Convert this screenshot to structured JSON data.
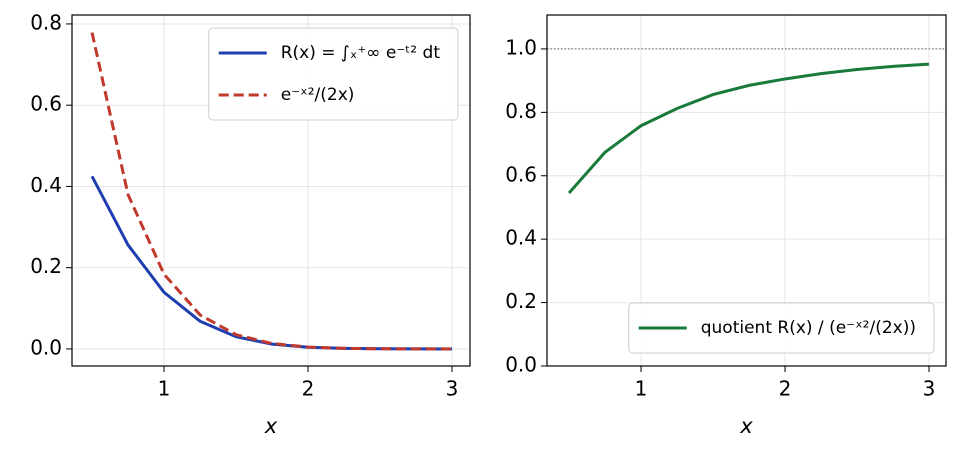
{
  "chart_data": [
    {
      "type": "line",
      "xlabel": "x",
      "x": [
        0.5,
        0.75,
        1,
        1.25,
        1.5,
        1.75,
        2,
        2.25,
        2.5,
        2.75,
        3
      ],
      "series": [
        {
          "name": "R(x) = ∫ₓ⁺∞ e⁻ᵗ² dt",
          "color": "#1f3fb0",
          "linestyle": "solid",
          "values": [
            0.425,
            0.256,
            0.1394,
            0.0683,
            0.0301,
            0.0118,
            0.0041,
            0.0013,
            0.0004,
            0.0001,
            0.0
          ]
        },
        {
          "name": "e⁻ˣ²/(2x)",
          "color": "#c0392b",
          "linestyle": "dashed",
          "values": [
            0.7788,
            0.3799,
            0.1839,
            0.0838,
            0.0351,
            0.0134,
            0.0046,
            0.0014,
            0.0004,
            0.0001,
            0.0
          ]
        }
      ],
      "xlim": [
        0.361,
        3.125
      ],
      "ylim": [
        -0.042,
        0.822
      ],
      "xticks": [
        1,
        2,
        3
      ],
      "yticks": [
        {
          "value": 0,
          "label": "0.0"
        },
        {
          "value": 0.2,
          "label": "0.2"
        },
        {
          "value": 0.4,
          "label": "0.4"
        },
        {
          "value": 0.6,
          "label": "0.6"
        },
        {
          "value": 0.8,
          "label": "0.8"
        }
      ],
      "grid": true,
      "legend": "upper right"
    },
    {
      "type": "line",
      "xlabel": "x",
      "x": [
        0.5,
        0.75,
        1,
        1.25,
        1.5,
        1.75,
        2,
        2.25,
        2.5,
        2.75,
        3
      ],
      "series": [
        {
          "name": "quotient R(x) / (e⁻ˣ²/(2x))",
          "color": "#1a7a3a",
          "linestyle": "solid",
          "values": [
            0.5457,
            0.6741,
            0.7578,
            0.812,
            0.856,
            0.885,
            0.9053,
            0.922,
            0.9352,
            0.945,
            0.9522
          ]
        }
      ],
      "hline": 1,
      "xlim": [
        0.347,
        3.118
      ],
      "ylim": [
        0,
        1.107
      ],
      "xticks": [
        1,
        2,
        3
      ],
      "yticks": [
        {
          "value": 0,
          "label": "0.0"
        },
        {
          "value": 0.2,
          "label": "0.2"
        },
        {
          "value": 0.4,
          "label": "0.4"
        },
        {
          "value": 0.6,
          "label": "0.6"
        },
        {
          "value": 0.8,
          "label": "0.8"
        },
        {
          "value": 1,
          "label": "1.0"
        }
      ],
      "grid": true,
      "legend": "lower right"
    }
  ]
}
